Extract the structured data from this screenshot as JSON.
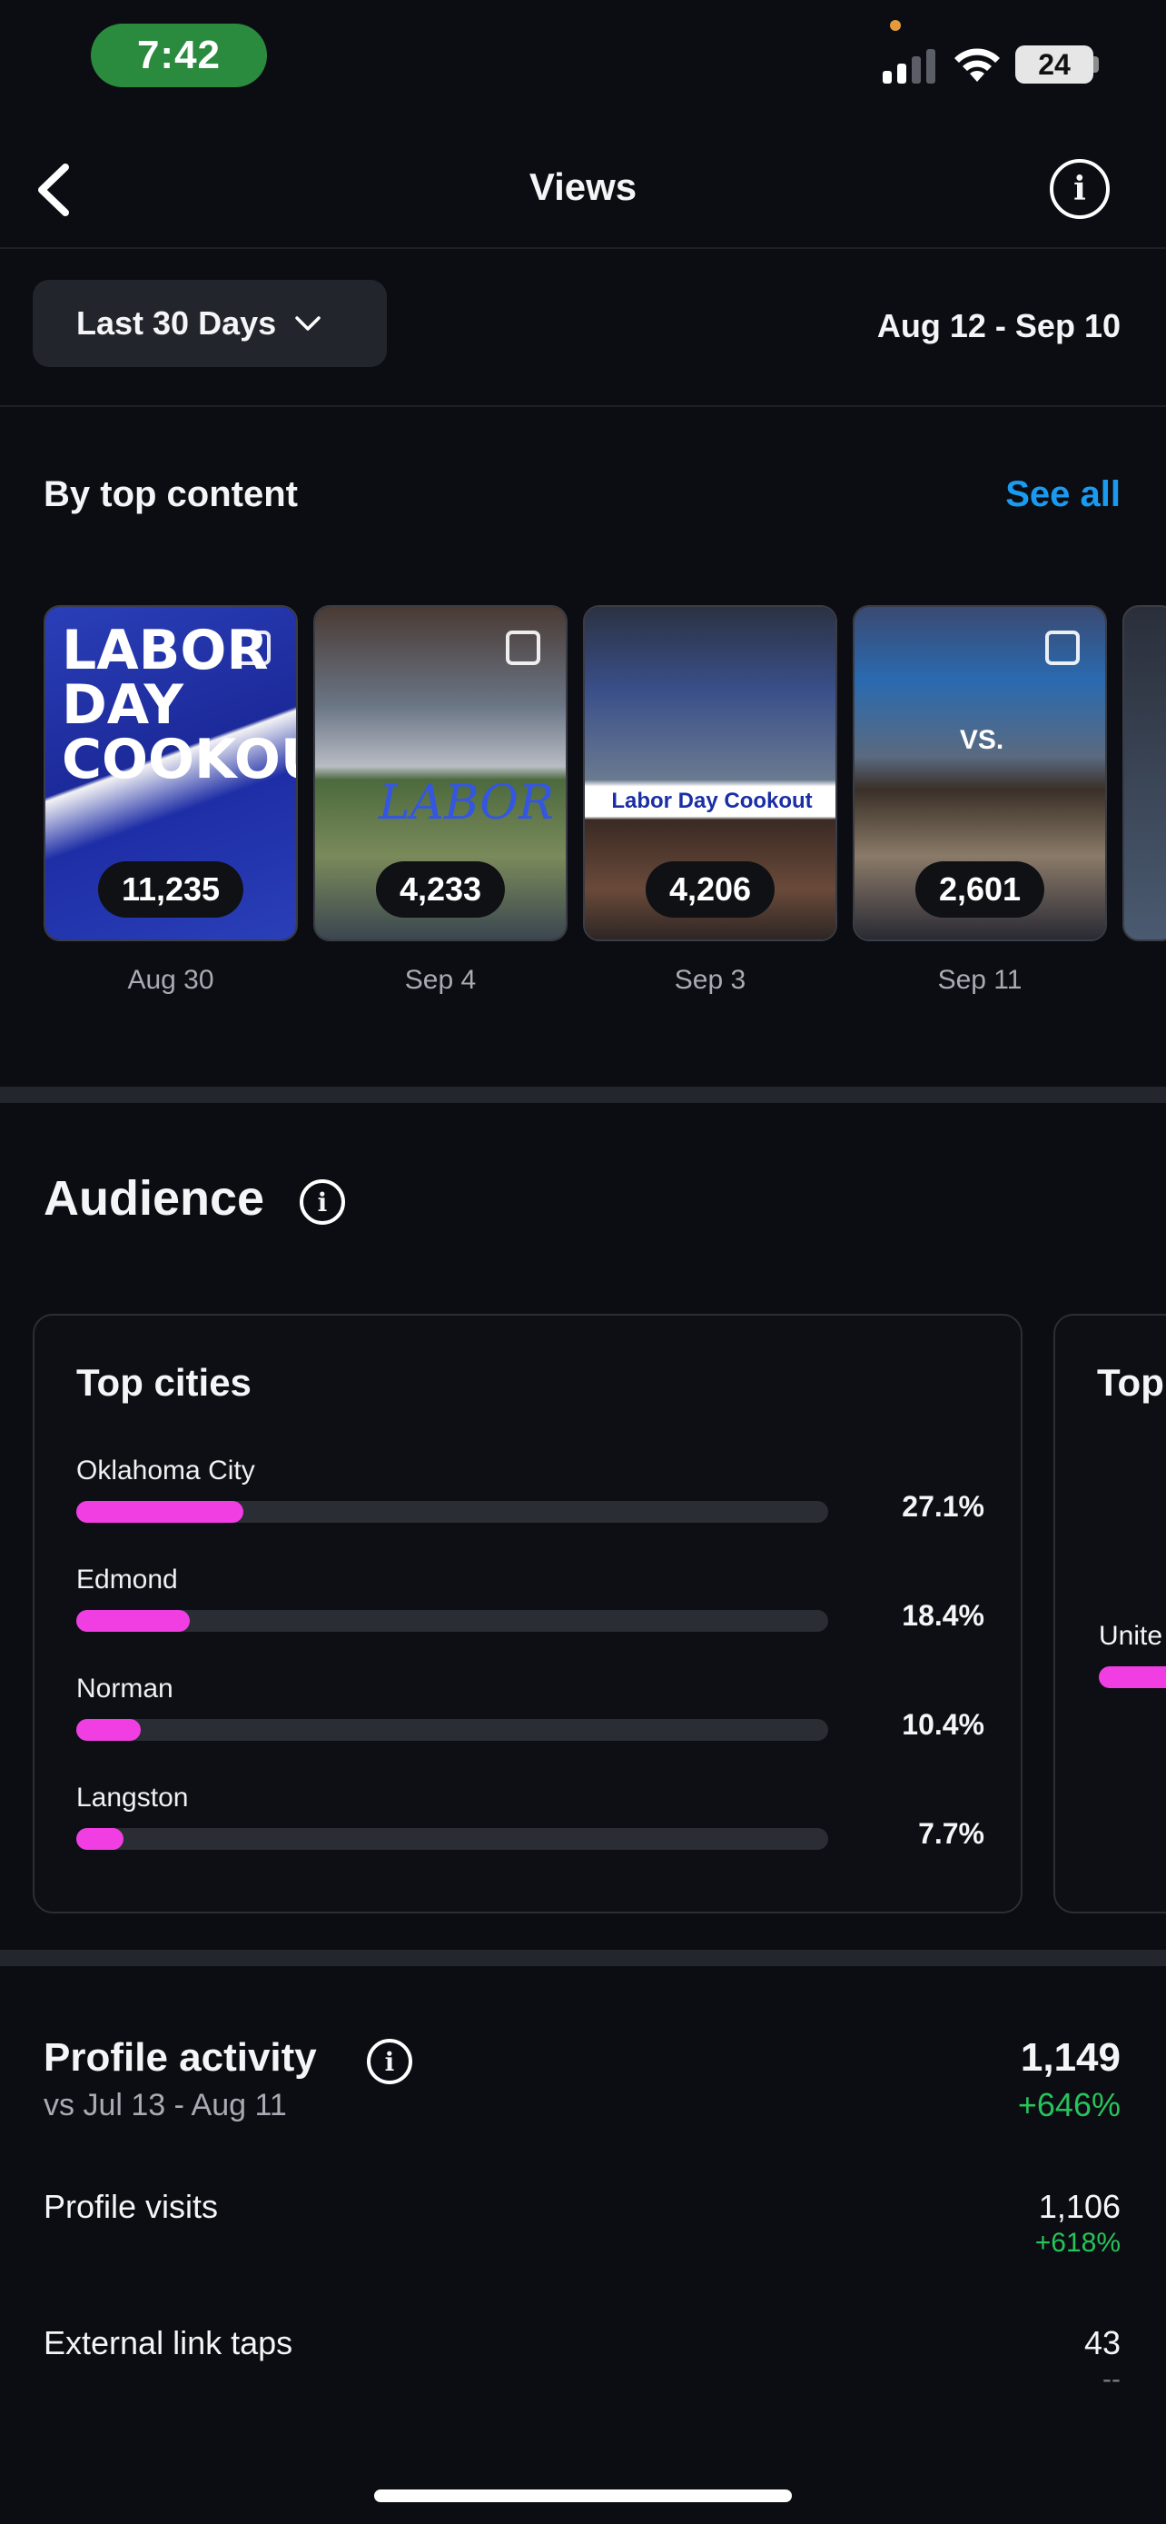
{
  "status_bar": {
    "time": "7:42",
    "battery": "24"
  },
  "header": {
    "title": "Views"
  },
  "filter": {
    "range_label": "Last 30 Days",
    "date_range": "Aug 12 - Sep 10"
  },
  "top_content": {
    "title": "By top content",
    "see_all": "See all",
    "items": [
      {
        "count": "11,235",
        "date": "Aug 30",
        "caption": "LABOR DAY COOKOUT"
      },
      {
        "count": "4,233",
        "date": "Sep 4",
        "caption": "LABOR"
      },
      {
        "count": "4,206",
        "date": "Sep 3",
        "caption": "Labor Day Cookout"
      },
      {
        "count": "2,601",
        "date": "Sep 11",
        "caption": "VS."
      }
    ]
  },
  "audience": {
    "title": "Audience",
    "top_cities": {
      "title": "Top cities",
      "items": [
        {
          "name": "Oklahoma City",
          "pct": "27.1%",
          "value": 27.1
        },
        {
          "name": "Edmond",
          "pct": "18.4%",
          "value": 18.4
        },
        {
          "name": "Norman",
          "pct": "10.4%",
          "value": 10.4
        },
        {
          "name": "Langston",
          "pct": "7.7%",
          "value": 7.7
        }
      ]
    },
    "next_card": {
      "title": "Top",
      "item": "Unite"
    }
  },
  "profile_activity": {
    "title": "Profile activity",
    "compare": "vs Jul 13 - Aug 11",
    "total": "1,149",
    "total_change": "+646%",
    "rows": [
      {
        "label": "Profile visits",
        "value": "1,106",
        "change": "+618%"
      },
      {
        "label": "External link taps",
        "value": "43",
        "change": "--"
      }
    ]
  },
  "colors": {
    "accent": "#1a9bf0",
    "bar": "#f03ee3",
    "positive": "#27c35b"
  }
}
